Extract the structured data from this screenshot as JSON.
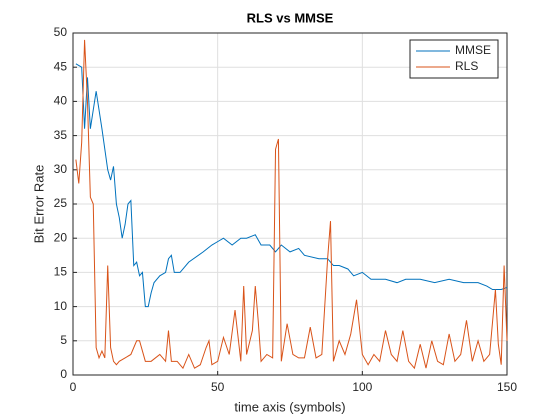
{
  "chart_data": {
    "type": "line",
    "title": "RLS vs MMSE",
    "xlabel": "time axis (symbols)",
    "ylabel": "Bit Error Rate",
    "xlim": [
      0,
      150
    ],
    "ylim": [
      0,
      50
    ],
    "xticks": [
      0,
      50,
      100,
      150
    ],
    "yticks": [
      0,
      5,
      10,
      15,
      20,
      25,
      30,
      35,
      40,
      45,
      50
    ],
    "grid": true,
    "legend": "upper right",
    "series": [
      {
        "name": "MMSE",
        "color": "#0072bd",
        "x": [
          1,
          3,
          4,
          5,
          6,
          8,
          10,
          12,
          13,
          14,
          15,
          16,
          17,
          18,
          19,
          20,
          21,
          22,
          23,
          24,
          25,
          26,
          27,
          28,
          30,
          32,
          33,
          34,
          35,
          37,
          40,
          45,
          48,
          50,
          52,
          55,
          58,
          60,
          63,
          65,
          68,
          70,
          72,
          75,
          78,
          80,
          85,
          88,
          90,
          92,
          95,
          97,
          100,
          103,
          108,
          112,
          115,
          120,
          125,
          130,
          135,
          140,
          143,
          145,
          148,
          150
        ],
        "values": [
          45.5,
          45,
          36,
          43.5,
          36,
          41.5,
          36,
          30,
          28.5,
          30.5,
          25,
          23,
          20,
          22,
          25,
          25.5,
          16,
          16.5,
          14.5,
          15,
          10,
          10,
          12,
          13.5,
          14.5,
          15,
          17,
          17.5,
          15,
          15,
          16.5,
          18,
          19,
          19.5,
          20,
          19,
          20,
          20,
          20.5,
          19,
          19,
          18,
          19,
          18,
          18.5,
          17.5,
          17,
          17,
          16,
          16,
          15.5,
          14.5,
          15,
          14,
          14,
          13.5,
          14,
          14,
          13.5,
          14,
          13.5,
          13.5,
          13,
          12.5,
          12.5,
          12.8
        ]
      },
      {
        "name": "RLS",
        "color": "#d95319",
        "x": [
          1,
          2,
          3,
          4,
          5,
          6,
          7,
          8,
          9,
          10,
          11,
          12,
          13,
          14,
          15,
          16,
          18,
          20,
          22,
          23,
          25,
          27,
          30,
          32,
          33,
          34,
          36,
          38,
          40,
          42,
          44,
          46,
          47,
          48,
          50,
          52,
          54,
          56,
          58,
          59,
          60,
          62,
          63,
          64,
          65,
          67,
          69,
          70,
          71,
          72,
          74,
          76,
          78,
          80,
          82,
          84,
          86,
          88,
          89,
          90,
          92,
          94,
          96,
          98,
          100,
          102,
          104,
          106,
          108,
          110,
          112,
          114,
          116,
          118,
          120,
          122,
          124,
          126,
          128,
          130,
          132,
          134,
          136,
          138,
          140,
          142,
          144,
          146,
          147,
          148,
          149,
          150
        ],
        "values": [
          31.5,
          28,
          34,
          49,
          40,
          26,
          25,
          4,
          2.5,
          3.5,
          2.5,
          16,
          4,
          2,
          1.5,
          2,
          2.5,
          3,
          5,
          5,
          2,
          2,
          3,
          2,
          6.5,
          2,
          2,
          1,
          3,
          1,
          1.5,
          4,
          5,
          1.5,
          2,
          5.5,
          3,
          9.5,
          2,
          13,
          3,
          6.5,
          13,
          8,
          2,
          3,
          2.5,
          33,
          34.5,
          2,
          7.5,
          3,
          2.5,
          2.5,
          7,
          2.5,
          3,
          17,
          22.5,
          2,
          5,
          3,
          6,
          11,
          3,
          1.5,
          3,
          2,
          6.5,
          3,
          2,
          6.5,
          2,
          1,
          4.5,
          1,
          5,
          2,
          1.5,
          6,
          2,
          3,
          8,
          2,
          5,
          2,
          3,
          12.5,
          4.5,
          1.5,
          16,
          5
        ]
      }
    ]
  }
}
